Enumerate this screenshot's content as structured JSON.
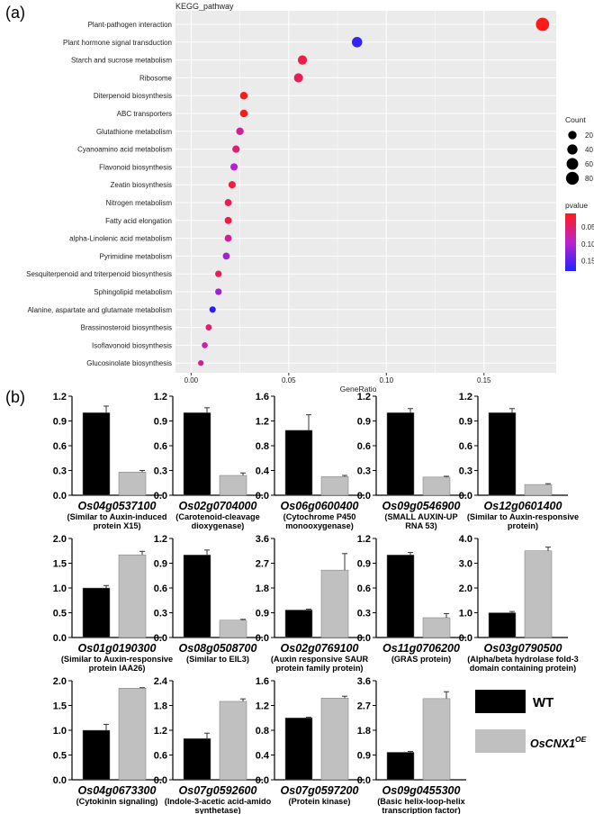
{
  "panel_a_label": "(a)",
  "panel_b_label": "(b)",
  "chart_data": [
    {
      "type": "scatter",
      "title": "KEGG_pathway",
      "xlabel": "GeneRatio",
      "ylabel": "",
      "xlim": [
        -0.008,
        0.187
      ],
      "xticks": [
        "0.00",
        "0.05",
        "0.10",
        "0.15"
      ],
      "grid": true,
      "colors": {
        "low_p": "#ff1a1a",
        "mid_p": "#bb22cc",
        "high_p": "#2222ff",
        "panel_bg": "#ebebeb"
      },
      "size_legend": {
        "title": "Count",
        "values": [
          20,
          40,
          60,
          80
        ]
      },
      "color_legend": {
        "title": "pvalue",
        "ticks": [
          "0.05",
          "0.10",
          "0.15"
        ],
        "range": [
          0.01,
          0.18
        ]
      },
      "categories": [
        "Plant-pathogen interaction",
        "Plant hormone signal transduction",
        "Starch and sucrose metabolism",
        "Ribosome",
        "Diterpenoid biosynthesis",
        "ABC transporters",
        "Glutathione metabolism",
        "Cyanoamino acid metabolism",
        "Flavonoid biosynthesis",
        "Zeatin biosynthesis",
        "Nitrogen metabolism",
        "Fatty acid elongation",
        "alpha-Linolenic acid metabolism",
        "Pyrimidine metabolism",
        "Sesquiterpenoid and triterpenoid biosynthesis",
        "Sphingolipid metabolism",
        "Alanine, aspartate and glutamate metabolism",
        "Brassinosteroid biosynthesis",
        "Isoflavonoid biosynthesis",
        "Glucosinolate biosynthesis"
      ],
      "x": [
        0.18,
        0.085,
        0.057,
        0.055,
        0.027,
        0.027,
        0.025,
        0.023,
        0.022,
        0.021,
        0.019,
        0.019,
        0.019,
        0.018,
        0.014,
        0.014,
        0.011,
        0.009,
        0.007,
        0.005
      ],
      "count": [
        88,
        42,
        28,
        27,
        14,
        14,
        13,
        12,
        11,
        11,
        10,
        10,
        10,
        9,
        7,
        7,
        6,
        5,
        4,
        3
      ],
      "pvalue": [
        0.01,
        0.17,
        0.03,
        0.04,
        0.01,
        0.01,
        0.07,
        0.05,
        0.1,
        0.03,
        0.04,
        0.03,
        0.07,
        0.11,
        0.04,
        0.11,
        0.18,
        0.05,
        0.08,
        0.07
      ]
    },
    {
      "type": "bar",
      "legend": [
        {
          "name": "WT",
          "color": "#000000"
        },
        {
          "name": "OsCNX1",
          "sup": "OE",
          "color": "#c0c0c0"
        }
      ],
      "colors": {
        "wt": "#000000",
        "oe": "#c0c0c0"
      },
      "subplots": [
        {
          "gene": "Os04g0537100",
          "desc": [
            "(Similar to Auxin-induced",
            "protein X15)"
          ],
          "ylim": [
            0,
            1.2
          ],
          "yticks": [
            "0.0",
            "0.3",
            "0.6",
            "0.9",
            "1.2"
          ],
          "values": [
            1.0,
            0.28
          ],
          "errors": [
            0.08,
            0.02
          ]
        },
        {
          "gene": "Os02g0704000",
          "desc": [
            "(Carotenoid-cleavage",
            "dioxygenase)"
          ],
          "ylim": [
            0,
            1.2
          ],
          "yticks": [
            "0.0",
            "0.3",
            "0.6",
            "0.9",
            "1.2"
          ],
          "values": [
            1.0,
            0.24
          ],
          "errors": [
            0.06,
            0.03
          ]
        },
        {
          "gene": "Os06g0600400",
          "desc": [
            "(Cytochrome P450",
            "monooxygenase)"
          ],
          "ylim": [
            0,
            1.6
          ],
          "yticks": [
            "0.0",
            "0.4",
            "0.8",
            "1.2",
            "1.6"
          ],
          "values": [
            1.05,
            0.3
          ],
          "errors": [
            0.25,
            0.02
          ]
        },
        {
          "gene": "Os09g0546900",
          "desc": [
            "(SMALL AUXIN-UP",
            "RNA 53)"
          ],
          "ylim": [
            0,
            1.2
          ],
          "yticks": [
            "0.0",
            "0.3",
            "0.6",
            "0.9",
            "1.2"
          ],
          "values": [
            1.0,
            0.22
          ],
          "errors": [
            0.05,
            0.01
          ]
        },
        {
          "gene": "Os12g0601400",
          "desc": [
            "(Similar to Auxin-responsive",
            "protein)"
          ],
          "ylim": [
            0,
            1.2
          ],
          "yticks": [
            "0.0",
            "0.3",
            "0.6",
            "0.9",
            "1.2"
          ],
          "values": [
            1.0,
            0.13
          ],
          "errors": [
            0.05,
            0.01
          ]
        },
        {
          "gene": "Os01g0190300",
          "desc": [
            "(Similar to Auxin-responsive",
            "protein IAA26)"
          ],
          "ylim": [
            0,
            2.0
          ],
          "yticks": [
            "0.0",
            "0.5",
            "1.0",
            "1.5",
            "2.0"
          ],
          "values": [
            1.0,
            1.67
          ],
          "errors": [
            0.05,
            0.07
          ]
        },
        {
          "gene": "Os08g0508700",
          "desc": [
            "(Similar to EIL3)"
          ],
          "ylim": [
            0,
            1.2
          ],
          "yticks": [
            "0.0",
            "0.3",
            "0.6",
            "0.9",
            "1.2"
          ],
          "values": [
            1.0,
            0.21
          ],
          "errors": [
            0.06,
            0.01
          ]
        },
        {
          "gene": "Os02g0769100",
          "desc": [
            "(Auxin responsive SAUR",
            "protein family protein)"
          ],
          "ylim": [
            0,
            3.6
          ],
          "yticks": [
            "0.0",
            "0.9",
            "1.8",
            "2.7",
            "3.6"
          ],
          "values": [
            1.0,
            2.45
          ],
          "errors": [
            0.03,
            0.6
          ]
        },
        {
          "gene": "Os11g0706200",
          "desc": [
            "(GRAS protein)"
          ],
          "ylim": [
            0,
            1.2
          ],
          "yticks": [
            "0.0",
            "0.3",
            "0.6",
            "0.9",
            "1.2"
          ],
          "values": [
            1.0,
            0.24
          ],
          "errors": [
            0.03,
            0.05
          ]
        },
        {
          "gene": "Os03g0790500",
          "desc": [
            "(Alpha/beta hydrolase fold-3",
            "domain containing protein)"
          ],
          "ylim": [
            0,
            4.0
          ],
          "yticks": [
            "0.0",
            "1.0",
            "2.0",
            "3.0",
            "4.0"
          ],
          "values": [
            1.0,
            3.5
          ],
          "errors": [
            0.05,
            0.15
          ]
        },
        {
          "gene": "Os04g0673300",
          "desc": [
            "(Cytokinin signaling)"
          ],
          "ylim": [
            0,
            2.0
          ],
          "yticks": [
            "0.0",
            "0.5",
            "1.0",
            "1.5",
            "2.0"
          ],
          "values": [
            1.0,
            1.85
          ],
          "errors": [
            0.12,
            0.01
          ]
        },
        {
          "gene": "Os07g0592600",
          "desc": [
            "(Indole-3-acetic acid-amido",
            "synthetase)"
          ],
          "ylim": [
            0,
            2.4
          ],
          "yticks": [
            "0.0",
            "0.6",
            "1.2",
            "1.8",
            "2.4"
          ],
          "values": [
            1.0,
            1.9
          ],
          "errors": [
            0.13,
            0.06
          ]
        },
        {
          "gene": "Os07g0597200",
          "desc": [
            "(Protein kinase)"
          ],
          "ylim": [
            0,
            1.6
          ],
          "yticks": [
            "0.0",
            "0.4",
            "0.8",
            "1.2",
            "1.6"
          ],
          "values": [
            1.0,
            1.32
          ],
          "errors": [
            0.01,
            0.03
          ]
        },
        {
          "gene": "Os09g0455300",
          "desc": [
            "(Basic helix-loop-helix",
            "transcription factor)"
          ],
          "ylim": [
            0,
            3.6
          ],
          "yticks": [
            "0.0",
            "0.9",
            "1.8",
            "2.7",
            "3.6"
          ],
          "values": [
            1.0,
            2.95
          ],
          "errors": [
            0.03,
            0.25
          ]
        }
      ]
    }
  ]
}
